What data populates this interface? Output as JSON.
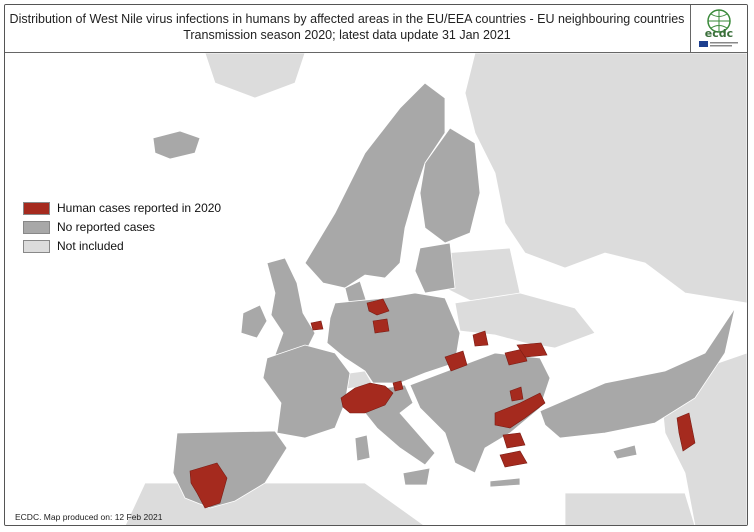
{
  "header": {
    "title_line1": "Distribution of West Nile virus infections in humans by affected areas in the EU/EEA countries - EU neighbouring countries",
    "title_line2": "Transmission season 2020; latest data update 31 Jan 2021",
    "logo_text": "ecdc"
  },
  "legend": {
    "items": [
      {
        "label": "Human cases reported in 2020",
        "color": "#a52a1e"
      },
      {
        "label": "No reported cases",
        "color": "#a8a8a8"
      },
      {
        "label": "Not included",
        "color": "#dcdcdc"
      }
    ]
  },
  "colors": {
    "affected": "#a52a1e",
    "no_cases": "#a8a8a8",
    "not_included": "#dcdcdc",
    "sea": "#ffffff",
    "border": "#ffffff"
  },
  "footer": {
    "credit": "ECDC. Map produced on: 12 Feb 2021"
  }
}
